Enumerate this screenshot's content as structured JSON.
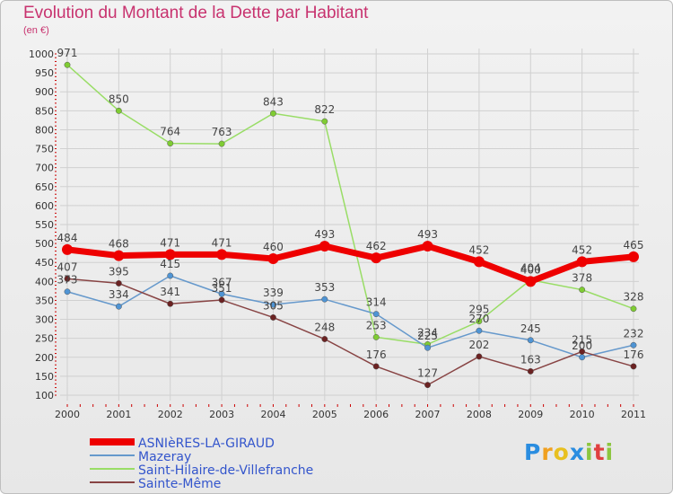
{
  "title": "Evolution du Montant de la Dette par Habitant",
  "subtitle": "(en €)",
  "logo": {
    "letters": [
      "P",
      "r",
      "o",
      "x",
      "i",
      "t",
      "i"
    ],
    "colors": [
      "#2a8de0",
      "#f0a020",
      "#e8c020",
      "#2a8de0",
      "#8cc63f",
      "#e04040",
      "#8cc63f"
    ]
  },
  "chart_data": {
    "type": "line",
    "x": [
      "2000",
      "2001",
      "2002",
      "2003",
      "2004",
      "2005",
      "2006",
      "2007",
      "2008",
      "2009",
      "2010",
      "2011"
    ],
    "ylim": [
      100,
      1000
    ],
    "yticks": [
      "100",
      "150",
      "200",
      "250",
      "300",
      "350",
      "400",
      "450",
      "500",
      "550",
      "600",
      "650",
      "700",
      "750",
      "800",
      "850",
      "900",
      "950",
      "1000"
    ],
    "grid": true,
    "legend_position": "bottom-left",
    "series": [
      {
        "name": "Saint-Hilaire-de-Villefranche",
        "color": "#99dd66",
        "marker": "#7fcc33",
        "width": 1.5,
        "values": [
          971,
          850,
          764,
          763,
          843,
          822,
          253,
          234,
          295,
          404,
          378,
          328
        ],
        "labels": [
          "971",
          "850",
          "764",
          "763",
          "843",
          "822",
          "253",
          "234",
          "295",
          "404",
          "378",
          "328"
        ]
      },
      {
        "name": "Mazeray",
        "color": "#6699cc",
        "marker": "#4f94d4",
        "width": 1.5,
        "values": [
          373,
          334,
          415,
          367,
          339,
          353,
          314,
          225,
          270,
          245,
          200,
          232
        ],
        "labels": [
          "373",
          "334",
          "415",
          "367",
          "339",
          "353",
          "314",
          "225",
          "270",
          "245",
          "200",
          "232"
        ]
      },
      {
        "name": "Sainte-Même",
        "color": "#884444",
        "marker": "#6b2222",
        "width": 1.5,
        "values": [
          407,
          395,
          341,
          351,
          305,
          248,
          176,
          127,
          202,
          163,
          215,
          176
        ],
        "labels": [
          "407",
          "395",
          "341",
          "351",
          "305",
          "248",
          "176",
          "127",
          "202",
          "163",
          "215",
          "176"
        ]
      },
      {
        "name": "ASNIèRES-LA-GIRAUD",
        "color": "#ee0000",
        "marker": "#ee0000",
        "width": 7,
        "values": [
          484,
          468,
          471,
          471,
          460,
          493,
          462,
          493,
          452,
          400,
          452,
          465
        ],
        "labels": [
          "484",
          "468",
          "471",
          "471",
          "460",
          "493",
          "462",
          "493",
          "452",
          "400",
          "452",
          "465"
        ]
      }
    ],
    "legend_order": [
      3,
      1,
      0,
      2
    ]
  }
}
